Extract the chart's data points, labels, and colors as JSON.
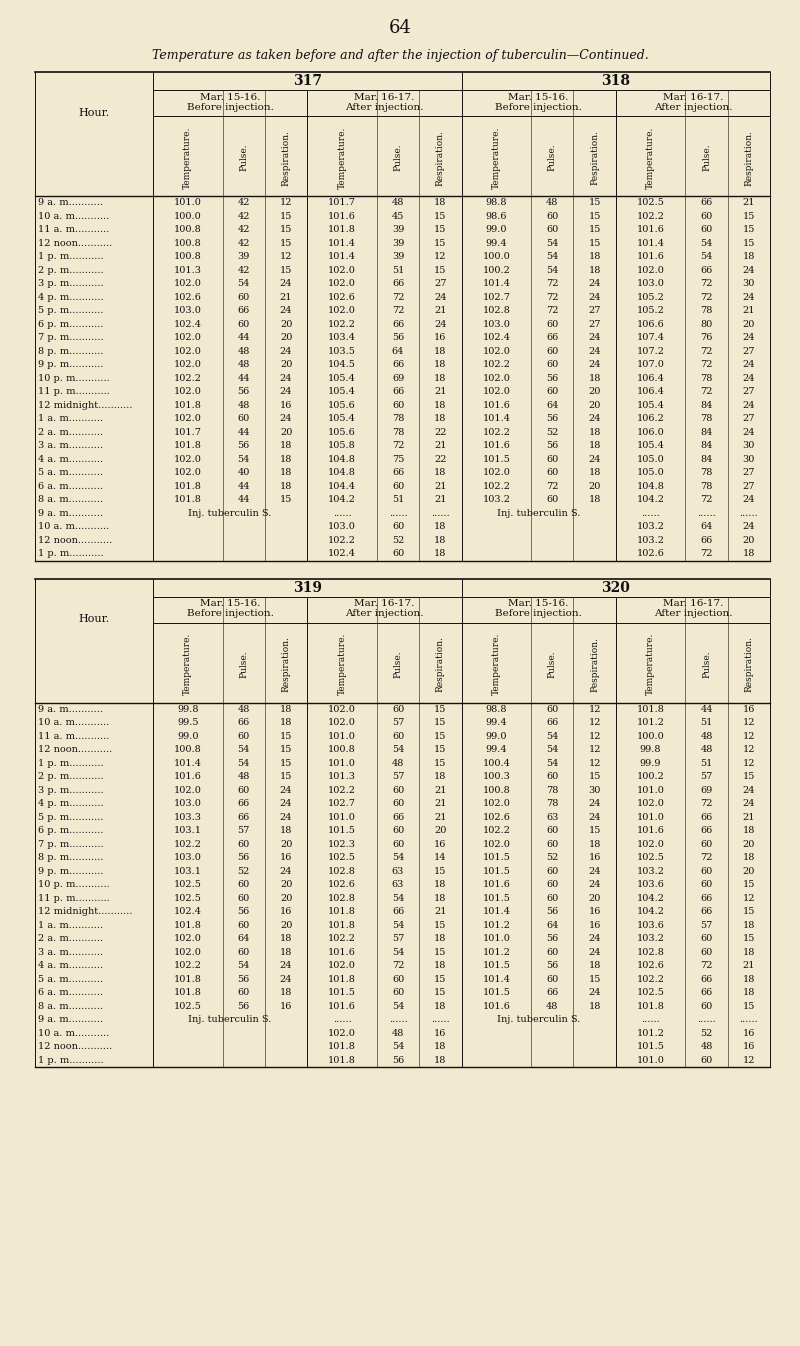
{
  "page_number": "64",
  "title": "Temperature as taken before and after the injection of tuberculin—Continued.",
  "bg_color": "#f2ead0",
  "top_sections": [
    "317",
    "318"
  ],
  "bottom_sections": [
    "319",
    "320"
  ],
  "hours_top": [
    "9 a. m",
    "10 a. m",
    "11 a. m",
    "12 noon",
    "1 p. m",
    "2 p. m",
    "3 p. m",
    "4 p. m",
    "5 p. m",
    "6 p. m",
    "7 p. m",
    "8 p. m",
    "9 p. m",
    "10 p. m",
    "11 p. m",
    "12 midnight",
    "1 a. m",
    "2 a. m",
    "3 a. m",
    "4 a. m",
    "5 a. m",
    "6 a. m",
    "8 a. m",
    "9 a. m",
    "10 a. m",
    "12 noon",
    "1 p. m"
  ],
  "top_data": [
    [
      "101.0",
      "42",
      "12",
      "101.7",
      "48",
      "18",
      "98.8",
      "48",
      "15",
      "102.5",
      "66",
      "21"
    ],
    [
      "100.0",
      "42",
      "15",
      "101.6",
      "45",
      "15",
      "98.6",
      "60",
      "15",
      "102.2",
      "60",
      "15"
    ],
    [
      "100.8",
      "42",
      "15",
      "101.8",
      "39",
      "15",
      "99.0",
      "60",
      "15",
      "101.6",
      "60",
      "15"
    ],
    [
      "100.8",
      "42",
      "15",
      "101.4",
      "39",
      "15",
      "99.4",
      "54",
      "15",
      "101.4",
      "54",
      "15"
    ],
    [
      "100.8",
      "39",
      "12",
      "101.4",
      "39",
      "12",
      "100.0",
      "54",
      "18",
      "101.6",
      "54",
      "18"
    ],
    [
      "101.3",
      "42",
      "15",
      "102.0",
      "51",
      "15",
      "100.2",
      "54",
      "18",
      "102.0",
      "66",
      "24"
    ],
    [
      "102.0",
      "54",
      "24",
      "102.0",
      "66",
      "27",
      "101.4",
      "72",
      "24",
      "103.0",
      "72",
      "30"
    ],
    [
      "102.6",
      "60",
      "21",
      "102.6",
      "72",
      "24",
      "102.7",
      "72",
      "24",
      "105.2",
      "72",
      "24"
    ],
    [
      "103.0",
      "66",
      "24",
      "102.0",
      "72",
      "21",
      "102.8",
      "72",
      "27",
      "105.2",
      "78",
      "21"
    ],
    [
      "102.4",
      "60",
      "20",
      "102.2",
      "66",
      "24",
      "103.0",
      "60",
      "27",
      "106.6",
      "80",
      "20"
    ],
    [
      "102.0",
      "44",
      "20",
      "103.4",
      "56",
      "16",
      "102.4",
      "66",
      "24",
      "107.4",
      "76",
      "24"
    ],
    [
      "102.0",
      "48",
      "24",
      "103.5",
      "64",
      "18",
      "102.0",
      "60",
      "24",
      "107.2",
      "72",
      "27"
    ],
    [
      "102.0",
      "48",
      "20",
      "104.5",
      "66",
      "18",
      "102.2",
      "60",
      "24",
      "107.0",
      "72",
      "24"
    ],
    [
      "102.2",
      "44",
      "24",
      "105.4",
      "69",
      "18",
      "102.0",
      "56",
      "18",
      "106.4",
      "78",
      "24"
    ],
    [
      "102.0",
      "56",
      "24",
      "105.4",
      "66",
      "21",
      "102.0",
      "60",
      "20",
      "106.4",
      "72",
      "27"
    ],
    [
      "101.8",
      "48",
      "16",
      "105.6",
      "60",
      "18",
      "101.6",
      "64",
      "20",
      "105.4",
      "84",
      "24"
    ],
    [
      "102.0",
      "60",
      "24",
      "105.4",
      "78",
      "18",
      "101.4",
      "56",
      "24",
      "106.2",
      "78",
      "27"
    ],
    [
      "101.7",
      "44",
      "20",
      "105.6",
      "78",
      "22",
      "102.2",
      "52",
      "18",
      "106.0",
      "84",
      "24"
    ],
    [
      "101.8",
      "56",
      "18",
      "105.8",
      "72",
      "21",
      "101.6",
      "56",
      "18",
      "105.4",
      "84",
      "30"
    ],
    [
      "102.0",
      "54",
      "18",
      "104.8",
      "75",
      "22",
      "101.5",
      "60",
      "24",
      "105.0",
      "84",
      "30"
    ],
    [
      "102.0",
      "40",
      "18",
      "104.8",
      "66",
      "18",
      "102.0",
      "60",
      "18",
      "105.0",
      "78",
      "27"
    ],
    [
      "101.8",
      "44",
      "18",
      "104.4",
      "60",
      "21",
      "102.2",
      "72",
      "20",
      "104.8",
      "78",
      "27"
    ],
    [
      "101.8",
      "44",
      "15",
      "104.2",
      "51",
      "21",
      "103.2",
      "60",
      "18",
      "104.2",
      "72",
      "24"
    ],
    [
      "INJ317",
      "",
      "",
      "",
      "",
      "",
      "INJ318",
      "",
      "",
      "",
      "",
      ""
    ],
    [
      "",
      "",
      "",
      "103.0",
      "60",
      "18",
      "",
      "",
      "",
      "103.2",
      "64",
      "24"
    ],
    [
      "",
      "",
      "",
      "102.2",
      "52",
      "18",
      "",
      "",
      "",
      "103.2",
      "66",
      "20"
    ],
    [
      "",
      "",
      "",
      "102.4",
      "60",
      "18",
      "",
      "",
      "",
      "102.6",
      "72",
      "18"
    ]
  ],
  "hours_bot": [
    "9 a. m",
    "10 a. m",
    "11 a. m",
    "12 noon",
    "1 p. m",
    "2 p. m",
    "3 p. m",
    "4 p. m",
    "5 p. m",
    "6 p. m",
    "7 p. m",
    "8 p. m",
    "9 p. m",
    "10 p. m",
    "11 p. m",
    "12 midnight",
    "1 a. m",
    "2 a. m",
    "3 a. m",
    "4 a. m",
    "5 a. m",
    "6 a. m",
    "8 a. m",
    "9 a. m",
    "10 a. m",
    "12 noon",
    "1 p. m"
  ],
  "bot_data": [
    [
      "99.8",
      "48",
      "18",
      "102.0",
      "60",
      "15",
      "98.8",
      "60",
      "12",
      "101.8",
      "44",
      "16"
    ],
    [
      "99.5",
      "66",
      "18",
      "102.0",
      "57",
      "15",
      "99.4",
      "66",
      "12",
      "101.2",
      "51",
      "12"
    ],
    [
      "99.0",
      "60",
      "15",
      "101.0",
      "60",
      "15",
      "99.0",
      "54",
      "12",
      "100.0",
      "48",
      "12"
    ],
    [
      "100.8",
      "54",
      "15",
      "100.8",
      "54",
      "15",
      "99.4",
      "54",
      "12",
      "99.8",
      "48",
      "12"
    ],
    [
      "101.4",
      "54",
      "15",
      "101.0",
      "48",
      "15",
      "100.4",
      "54",
      "12",
      "99.9",
      "51",
      "12"
    ],
    [
      "101.6",
      "48",
      "15",
      "101.3",
      "57",
      "18",
      "100.3",
      "60",
      "15",
      "100.2",
      "57",
      "15"
    ],
    [
      "102.0",
      "60",
      "24",
      "102.2",
      "60",
      "21",
      "100.8",
      "78",
      "30",
      "101.0",
      "69",
      "24"
    ],
    [
      "103.0",
      "66",
      "24",
      "102.7",
      "60",
      "21",
      "102.0",
      "78",
      "24",
      "102.0",
      "72",
      "24"
    ],
    [
      "103.3",
      "66",
      "24",
      "101.0",
      "66",
      "21",
      "102.6",
      "63",
      "24",
      "101.0",
      "66",
      "21"
    ],
    [
      "103.1",
      "57",
      "18",
      "101.5",
      "60",
      "20",
      "102.2",
      "60",
      "15",
      "101.6",
      "66",
      "18"
    ],
    [
      "102.2",
      "60",
      "20",
      "102.3",
      "60",
      "16",
      "102.0",
      "60",
      "18",
      "102.0",
      "60",
      "20"
    ],
    [
      "103.0",
      "56",
      "16",
      "102.5",
      "54",
      "14",
      "101.5",
      "52",
      "16",
      "102.5",
      "72",
      "18"
    ],
    [
      "103.1",
      "52",
      "24",
      "102.8",
      "63",
      "15",
      "101.5",
      "60",
      "24",
      "103.2",
      "60",
      "20"
    ],
    [
      "102.5",
      "60",
      "20",
      "102.6",
      "63",
      "18",
      "101.6",
      "60",
      "24",
      "103.6",
      "60",
      "15"
    ],
    [
      "102.5",
      "60",
      "20",
      "102.8",
      "54",
      "18",
      "101.5",
      "60",
      "20",
      "104.2",
      "66",
      "12"
    ],
    [
      "102.4",
      "56",
      "16",
      "101.8",
      "66",
      "21",
      "101.4",
      "56",
      "16",
      "104.2",
      "66",
      "15"
    ],
    [
      "101.8",
      "60",
      "20",
      "101.8",
      "54",
      "15",
      "101.2",
      "64",
      "16",
      "103.6",
      "57",
      "18"
    ],
    [
      "102.0",
      "64",
      "18",
      "102.2",
      "57",
      "18",
      "101.0",
      "56",
      "24",
      "103.2",
      "60",
      "15"
    ],
    [
      "102.0",
      "60",
      "18",
      "101.6",
      "54",
      "15",
      "101.2",
      "60",
      "24",
      "102.8",
      "60",
      "18"
    ],
    [
      "102.2",
      "54",
      "24",
      "102.0",
      "72",
      "18",
      "101.5",
      "56",
      "18",
      "102.6",
      "72",
      "21"
    ],
    [
      "101.8",
      "56",
      "24",
      "101.8",
      "60",
      "15",
      "101.4",
      "60",
      "15",
      "102.2",
      "66",
      "18"
    ],
    [
      "101.8",
      "60",
      "18",
      "101.5",
      "60",
      "15",
      "101.5",
      "66",
      "24",
      "102.5",
      "66",
      "18"
    ],
    [
      "102.5",
      "56",
      "16",
      "101.6",
      "54",
      "18",
      "101.6",
      "48",
      "18",
      "101.8",
      "60",
      "15"
    ],
    [
      "INJ319",
      "",
      "",
      "",
      "",
      "",
      "INJ320",
      "",
      "",
      "",
      "",
      ""
    ],
    [
      "",
      "",
      "",
      "102.0",
      "48",
      "16",
      "",
      "",
      "",
      "101.2",
      "52",
      "16"
    ],
    [
      "",
      "",
      "",
      "101.8",
      "54",
      "18",
      "",
      "",
      "",
      "101.5",
      "48",
      "16"
    ],
    [
      "",
      "",
      "",
      "101.8",
      "56",
      "18",
      "",
      "",
      "",
      "101.0",
      "60",
      "12"
    ]
  ]
}
